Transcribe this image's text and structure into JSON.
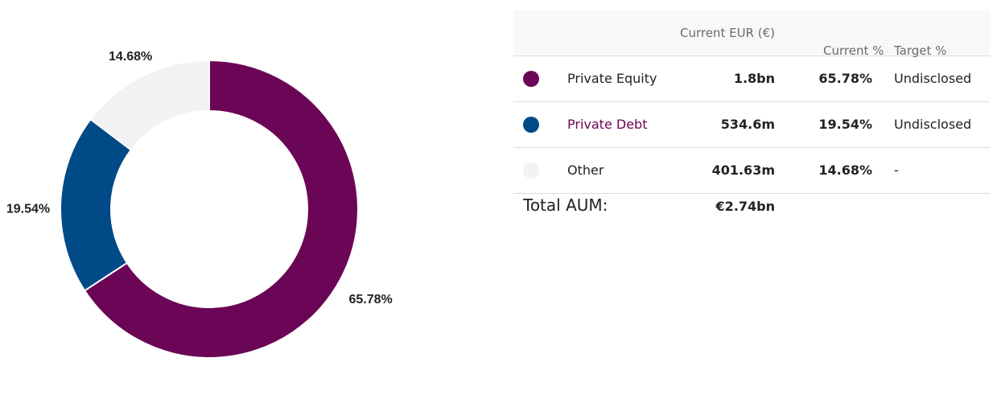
{
  "chart_data": {
    "type": "donut",
    "categories": [
      "Private Equity",
      "Private Debt",
      "Other"
    ],
    "values": [
      65.78,
      19.54,
      14.68
    ],
    "value_labels": [
      "65.78%",
      "19.54%",
      "14.68%"
    ],
    "colors": [
      "#6b0657",
      "#004a87",
      "#f2f2f2"
    ]
  },
  "table": {
    "header": {
      "current_eur": "Current EUR (€)",
      "current_pct": "Current %",
      "target_pct": "Target %"
    },
    "rows": [
      {
        "name": "Private Equity",
        "current_eur": "1.8bn",
        "current_pct": "65.78%",
        "target_pct": "Undisclosed"
      },
      {
        "name": "Private Debt",
        "current_eur": "534.6m",
        "current_pct": "19.54%",
        "target_pct": "Undisclosed"
      },
      {
        "name": "Other",
        "current_eur": "401.63m",
        "current_pct": "14.68%",
        "target_pct": "-"
      }
    ],
    "total": {
      "label": "Total AUM:",
      "value": "€2.74bn"
    }
  }
}
